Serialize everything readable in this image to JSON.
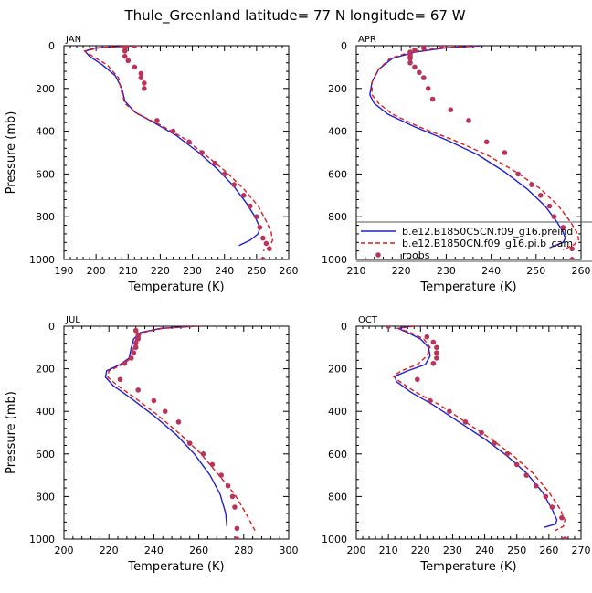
{
  "figure": {
    "title": "Thule_Greenland   latitude= 77 N longitude= 67 W"
  },
  "colors": {
    "model1": "#1f1fcc",
    "model2": "#e01b1b",
    "obs": "#b8345a",
    "frame": "#000000"
  },
  "legend": {
    "placement": "inside APR panel, lower right, clipped at right edge",
    "entries": [
      {
        "label": "b.e12.B1850C5CN.f09_g16.preind",
        "style": "solid",
        "color": "#1f1fcc"
      },
      {
        "label": "b.e12.B1850CN.f09_g16.pi.b_cam",
        "style": "dashed",
        "color": "#e01b1b"
      },
      {
        "label": "roobs",
        "style": "dots",
        "color": "#b8345a"
      }
    ]
  },
  "chart_data": [
    {
      "type": "line",
      "panel": "JAN",
      "xlabel": "Temperature (K)",
      "ylabel": "Pressure (mb)",
      "xlim": [
        190,
        260
      ],
      "ylim": [
        1000,
        0
      ],
      "xticks": [
        190,
        200,
        210,
        220,
        230,
        240,
        250,
        260
      ],
      "yticks": [
        0,
        200,
        400,
        600,
        800,
        1000
      ],
      "series": [
        {
          "name": "b.e12.B1850C5CN.f09_g16.preind",
          "style": "solid",
          "x": [
            212.0,
            200.0,
            196.5,
            198.0,
            202.0,
            206.0,
            208.0,
            209.0,
            212.0,
            218.0,
            225.0,
            232.0,
            238.0,
            243.0,
            247.0,
            249.5,
            251.0,
            250.5,
            248.0,
            244.5
          ],
          "y": [
            0,
            10,
            25,
            50,
            90,
            140,
            200,
            260,
            310,
            360,
            420,
            500,
            580,
            660,
            740,
            800,
            850,
            880,
            910,
            935
          ]
        },
        {
          "name": "b.e12.B1850CN.f09_g16.pi.b_cam",
          "style": "dashed",
          "x": [
            213.0,
            201.0,
            196.5,
            199.0,
            203.5,
            207.0,
            208.0,
            209.0,
            213.0,
            220.0,
            227.0,
            234.0,
            240.5,
            246.0,
            250.5,
            253.0,
            254.5,
            255.0,
            254.0,
            252.0
          ],
          "y": [
            0,
            10,
            25,
            50,
            90,
            150,
            220,
            270,
            320,
            370,
            430,
            510,
            590,
            670,
            750,
            820,
            870,
            910,
            940,
            960
          ]
        },
        {
          "name": "roobs",
          "style": "dots",
          "x": [
            212,
            209,
            209,
            209,
            210,
            212,
            214,
            214,
            215,
            215,
            219,
            224,
            229,
            233,
            237,
            240,
            243,
            246,
            248,
            250,
            251,
            252,
            253,
            254,
            252
          ],
          "y": [
            0,
            10,
            25,
            50,
            70,
            100,
            130,
            150,
            175,
            200,
            350,
            400,
            450,
            500,
            550,
            600,
            650,
            700,
            750,
            800,
            850,
            900,
            925,
            950,
            1000
          ]
        }
      ]
    },
    {
      "type": "line",
      "panel": "APR",
      "xlabel": "Temperature (K)",
      "ylabel": "",
      "xlim": [
        210,
        260
      ],
      "ylim": [
        1000,
        0
      ],
      "xticks": [
        210,
        220,
        230,
        240,
        250,
        260
      ],
      "yticks": [
        0,
        200,
        400,
        600,
        800,
        1000
      ],
      "series": [
        {
          "name": "b.e12.B1850C5CN.f09_g16.preind",
          "style": "solid",
          "x": [
            238.0,
            230.0,
            223.0,
            218.0,
            215.0,
            213.5,
            213.0,
            214.0,
            217.0,
            223.0,
            230.0,
            237.0,
            243.0,
            248.0,
            252.0,
            254.5,
            256.0,
            256.5,
            256.0,
            253.0
          ],
          "y": [
            0,
            10,
            30,
            60,
            110,
            170,
            230,
            270,
            320,
            380,
            440,
            510,
            590,
            670,
            750,
            820,
            870,
            900,
            920,
            945
          ]
        },
        {
          "name": "b.e12.B1850CN.f09_g16.pi.b_cam",
          "style": "dashed",
          "x": [
            237.0,
            229.0,
            222.0,
            217.5,
            215.0,
            213.5,
            213.5,
            215.0,
            218.0,
            224.0,
            231.5,
            239.0,
            245.5,
            251.0,
            255.0,
            257.5,
            259.0,
            259.5,
            258.5,
            256.0
          ],
          "y": [
            0,
            10,
            30,
            60,
            110,
            170,
            230,
            270,
            320,
            380,
            440,
            510,
            590,
            670,
            750,
            820,
            870,
            905,
            930,
            955
          ]
        },
        {
          "name": "roobs",
          "style": "dots",
          "x": [
            229,
            225,
            223,
            222,
            222,
            222,
            222,
            222,
            223,
            224,
            225,
            226,
            227,
            231,
            235,
            239,
            243,
            246,
            249,
            251,
            253,
            254,
            256,
            258,
            258
          ],
          "y": [
            0,
            10,
            20,
            30,
            40,
            50,
            60,
            80,
            100,
            125,
            150,
            200,
            250,
            300,
            350,
            450,
            500,
            600,
            650,
            700,
            750,
            800,
            850,
            950,
            1000
          ]
        }
      ]
    },
    {
      "type": "line",
      "panel": "JUL",
      "xlabel": "Temperature (K)",
      "ylabel": "Pressure (mb)",
      "xlim": [
        200,
        300
      ],
      "ylim": [
        1000,
        0
      ],
      "xticks": [
        200,
        220,
        240,
        260,
        280,
        300
      ],
      "yticks": [
        0,
        200,
        400,
        600,
        800,
        1000
      ],
      "series": [
        {
          "name": "b.e12.B1850C5CN.f09_g16.preind",
          "style": "solid",
          "x": [
            258.0,
            243.0,
            234.0,
            231.0,
            230.0,
            229.0,
            225.0,
            219.0,
            218.5,
            222.0,
            230.0,
            240.0,
            250.0,
            258.0,
            265.0,
            269.5,
            272.0,
            272.5
          ],
          "y": [
            0,
            10,
            30,
            60,
            100,
            150,
            180,
            210,
            240,
            280,
            340,
            420,
            510,
            600,
            700,
            790,
            880,
            940
          ]
        },
        {
          "name": "b.e12.B1850CN.f09_g16.pi.b_cam",
          "style": "dashed",
          "x": [
            260.0,
            244.0,
            235.0,
            232.0,
            231.0,
            230.0,
            226.0,
            220.0,
            219.5,
            224.0,
            232.0,
            242.0,
            252.0,
            261.0,
            269.0,
            276.0,
            281.0,
            285.0
          ],
          "y": [
            0,
            10,
            30,
            60,
            100,
            150,
            180,
            210,
            240,
            280,
            340,
            420,
            510,
            600,
            700,
            790,
            880,
            960
          ]
        },
        {
          "name": "roobs",
          "style": "dots",
          "x": [
            232,
            233,
            233,
            233,
            232,
            232,
            231,
            230,
            227,
            225,
            233,
            240,
            245,
            251,
            256,
            262,
            266,
            270,
            273,
            275,
            276,
            277,
            277
          ],
          "y": [
            20,
            40,
            50,
            60,
            80,
            100,
            125,
            150,
            175,
            250,
            300,
            350,
            400,
            450,
            550,
            600,
            650,
            700,
            750,
            800,
            850,
            950,
            1000
          ]
        }
      ]
    },
    {
      "type": "line",
      "panel": "OCT",
      "xlabel": "Temperature (K)",
      "ylabel": "",
      "xlim": [
        200,
        270
      ],
      "ylim": [
        1000,
        0
      ],
      "xticks": [
        200,
        210,
        220,
        230,
        240,
        250,
        260,
        270
      ],
      "yticks": [
        0,
        200,
        400,
        600,
        800,
        1000
      ],
      "series": [
        {
          "name": "b.e12.B1850C5CN.f09_g16.preind",
          "style": "solid",
          "x": [
            217.0,
            213.0,
            216.0,
            220.0,
            222.5,
            223.0,
            221.5,
            216.0,
            212.0,
            212.5,
            217.0,
            224.0,
            232.0,
            240.0,
            247.0,
            253.0,
            258.0,
            261.0,
            262.5,
            262.0,
            258.5
          ],
          "y": [
            0,
            10,
            30,
            60,
            100,
            140,
            180,
            210,
            235,
            260,
            310,
            370,
            450,
            530,
            610,
            690,
            780,
            860,
            910,
            930,
            945
          ]
        },
        {
          "name": "b.e12.B1850CN.f09_g16.pi.b_cam",
          "style": "dashed",
          "x": [
            218.0,
            213.0,
            217.0,
            221.0,
            223.0,
            222.0,
            219.0,
            214.0,
            211.5,
            213.5,
            218.5,
            226.0,
            234.0,
            242.0,
            249.0,
            255.0,
            260.0,
            263.5,
            265.0,
            264.5,
            262.0
          ],
          "y": [
            0,
            10,
            30,
            60,
            100,
            140,
            180,
            210,
            235,
            260,
            310,
            370,
            450,
            530,
            610,
            690,
            780,
            860,
            910,
            940,
            960
          ]
        },
        {
          "name": "roobs",
          "style": "dots",
          "x": [
            210,
            222,
            224,
            225,
            225,
            225,
            224,
            219,
            223,
            229,
            234,
            239,
            243,
            247,
            250,
            253,
            256,
            259,
            261,
            264,
            265
          ],
          "y": [
            0,
            50,
            75,
            100,
            125,
            150,
            175,
            250,
            350,
            400,
            450,
            500,
            550,
            600,
            650,
            700,
            750,
            800,
            850,
            900,
            1000
          ]
        }
      ]
    }
  ]
}
